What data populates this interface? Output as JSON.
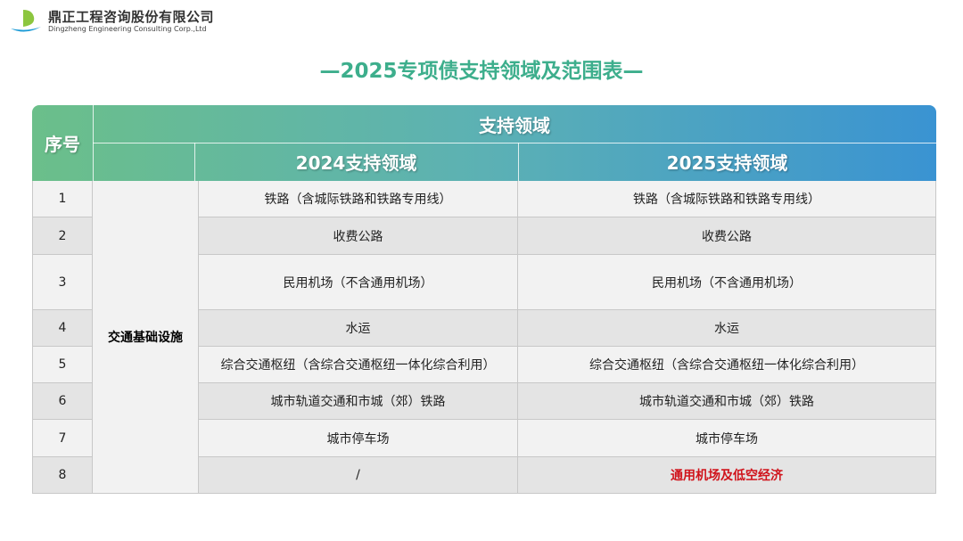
{
  "logo": {
    "company_cn": "鼎正工程咨询股份有限公司",
    "company_en": "Dingzheng Engineering Consulting Corp.,Ltd"
  },
  "title": "—2025专项债支持领域及范围表—",
  "table": {
    "header": {
      "index": "序号",
      "support_area": "支持领域",
      "col_2024": "2024支持领域",
      "col_2025": "2025支持领域"
    },
    "category": "交通基础设施",
    "rows": [
      {
        "no": "1",
        "y2024": "铁路（含城际铁路和铁路专用线）",
        "y2025": "铁路（含城际铁路和铁路专用线）"
      },
      {
        "no": "2",
        "y2024": "收费公路",
        "y2025": "收费公路"
      },
      {
        "no": "3",
        "y2024": "民用机场（不含通用机场）",
        "y2025": "民用机场（不含通用机场）"
      },
      {
        "no": "4",
        "y2024": "水运",
        "y2025": "水运"
      },
      {
        "no": "5",
        "y2024": "综合交通枢纽（含综合交通枢纽一体化综合利用）",
        "y2025": "综合交通枢纽（含综合交通枢纽一体化综合利用）"
      },
      {
        "no": "6",
        "y2024": "城市轨道交通和市城（郊）铁路",
        "y2025": "城市轨道交通和市城（郊）铁路"
      },
      {
        "no": "7",
        "y2024": "城市停车场",
        "y2025": "城市停车场"
      },
      {
        "no": "8",
        "y2024": "/",
        "y2025": "通用机场及低空经济"
      }
    ],
    "highlight_color": "#d0131b"
  }
}
